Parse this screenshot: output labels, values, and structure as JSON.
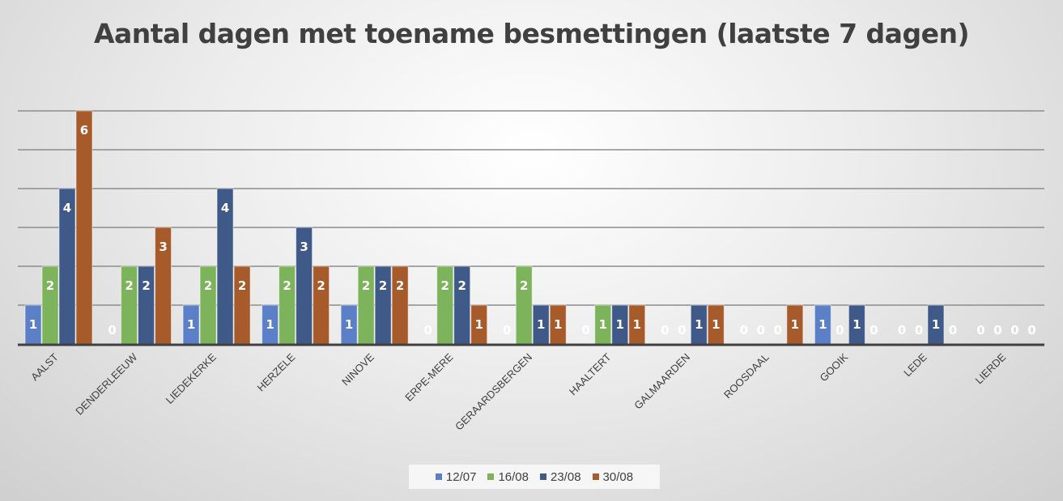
{
  "chart_data": {
    "type": "bar",
    "title": "Aantal dagen met toename besmettingen (laatste 7 dagen)",
    "xlabel": "",
    "ylabel": "",
    "ylim": [
      0,
      6
    ],
    "grid": true,
    "legend_position": "bottom",
    "categories": [
      "AALST",
      "DENDERLEEUW",
      "LIEDEKERKE",
      "HERZELE",
      "NINOVE",
      "ERPE-MERE",
      "GERAARDSBERGEN",
      "HAALTERT",
      "GALMAARDEN",
      "ROOSDAAL",
      "GOOIK",
      "LEDE",
      "LIERDE"
    ],
    "series": [
      {
        "name": "12/07",
        "color": "#5b80c8",
        "values": [
          1,
          0,
          1,
          1,
          1,
          0,
          0,
          0,
          0,
          0,
          1,
          0,
          0
        ]
      },
      {
        "name": "16/08",
        "color": "#7db35a",
        "values": [
          2,
          2,
          2,
          2,
          2,
          2,
          2,
          1,
          0,
          0,
          0,
          0,
          0
        ]
      },
      {
        "name": "23/08",
        "color": "#3f5a88",
        "values": [
          4,
          2,
          4,
          3,
          2,
          2,
          1,
          1,
          1,
          0,
          1,
          1,
          0
        ]
      },
      {
        "name": "30/08",
        "color": "#a85b2a",
        "values": [
          6,
          3,
          2,
          2,
          2,
          1,
          1,
          1,
          1,
          1,
          0,
          0,
          0
        ]
      }
    ]
  }
}
